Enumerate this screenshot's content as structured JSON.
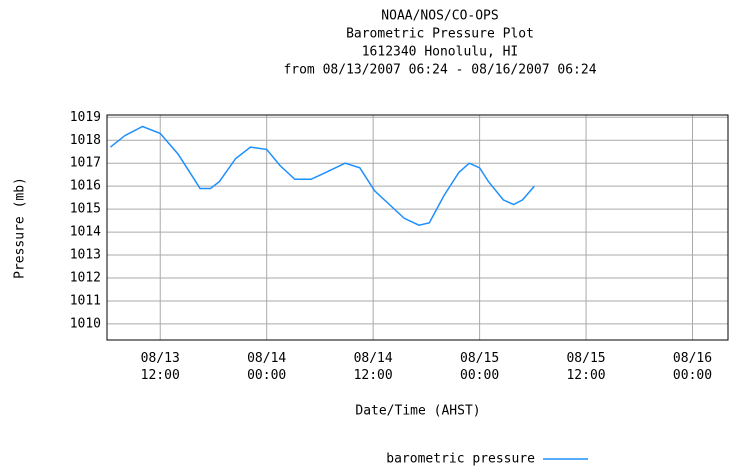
{
  "chart_data": {
    "type": "line",
    "title": [
      "NOAA/NOS/CO-OPS",
      "Barometric Pressure Plot",
      "1612340 Honolulu, HI",
      "from 08/13/2007 06:24 - 08/16/2007 06:24"
    ],
    "ylabel": "Pressure (mb)",
    "xlabel": "Date/Time (AHST)",
    "x": [
      "08/13 06:24",
      "08/13 08:00",
      "08/13 10:00",
      "08/13 12:00",
      "08/13 14:00",
      "08/13 15:30",
      "08/13 16:30",
      "08/13 17:40",
      "08/13 18:40",
      "08/13 20:30",
      "08/13 22:10",
      "08/14 00:00",
      "08/14 01:30",
      "08/14 03:10",
      "08/14 05:00",
      "08/14 06:40",
      "08/14 08:50",
      "08/14 10:30",
      "08/14 12:10",
      "08/14 13:50",
      "08/14 15:30",
      "08/14 17:10",
      "08/14 18:20",
      "08/14 20:00",
      "08/14 21:40",
      "08/14 22:50",
      "08/15 00:00",
      "08/15 01:00",
      "08/15 02:40",
      "08/15 03:50",
      "08/15 04:50",
      "08/15 06:10"
    ],
    "series": [
      {
        "name": "barometric pressure",
        "color": "#1e8fff",
        "values": [
          1017.7,
          1018.2,
          1018.6,
          1018.3,
          1017.4,
          1016.5,
          1015.9,
          1015.9,
          1016.2,
          1017.2,
          1017.7,
          1017.6,
          1016.9,
          1016.3,
          1016.3,
          1016.6,
          1017.0,
          1016.8,
          1015.8,
          1015.2,
          1014.6,
          1014.3,
          1014.4,
          1015.6,
          1016.6,
          1017.0,
          1016.8,
          1016.2,
          1015.4,
          1015.2,
          1015.4,
          1016.0
        ]
      }
    ],
    "xlim": [
      "08/13 06:00",
      "08/16 04:00"
    ],
    "xticks": [
      "08/13\n12:00",
      "08/14\n00:00",
      "08/14\n12:00",
      "08/15\n00:00",
      "08/15\n12:00",
      "08/16\n00:00"
    ],
    "ylim": [
      1009.3,
      1019.1
    ],
    "yticks": [
      1010,
      1011,
      1012,
      1013,
      1014,
      1015,
      1016,
      1017,
      1018,
      1019
    ],
    "grid": true
  }
}
